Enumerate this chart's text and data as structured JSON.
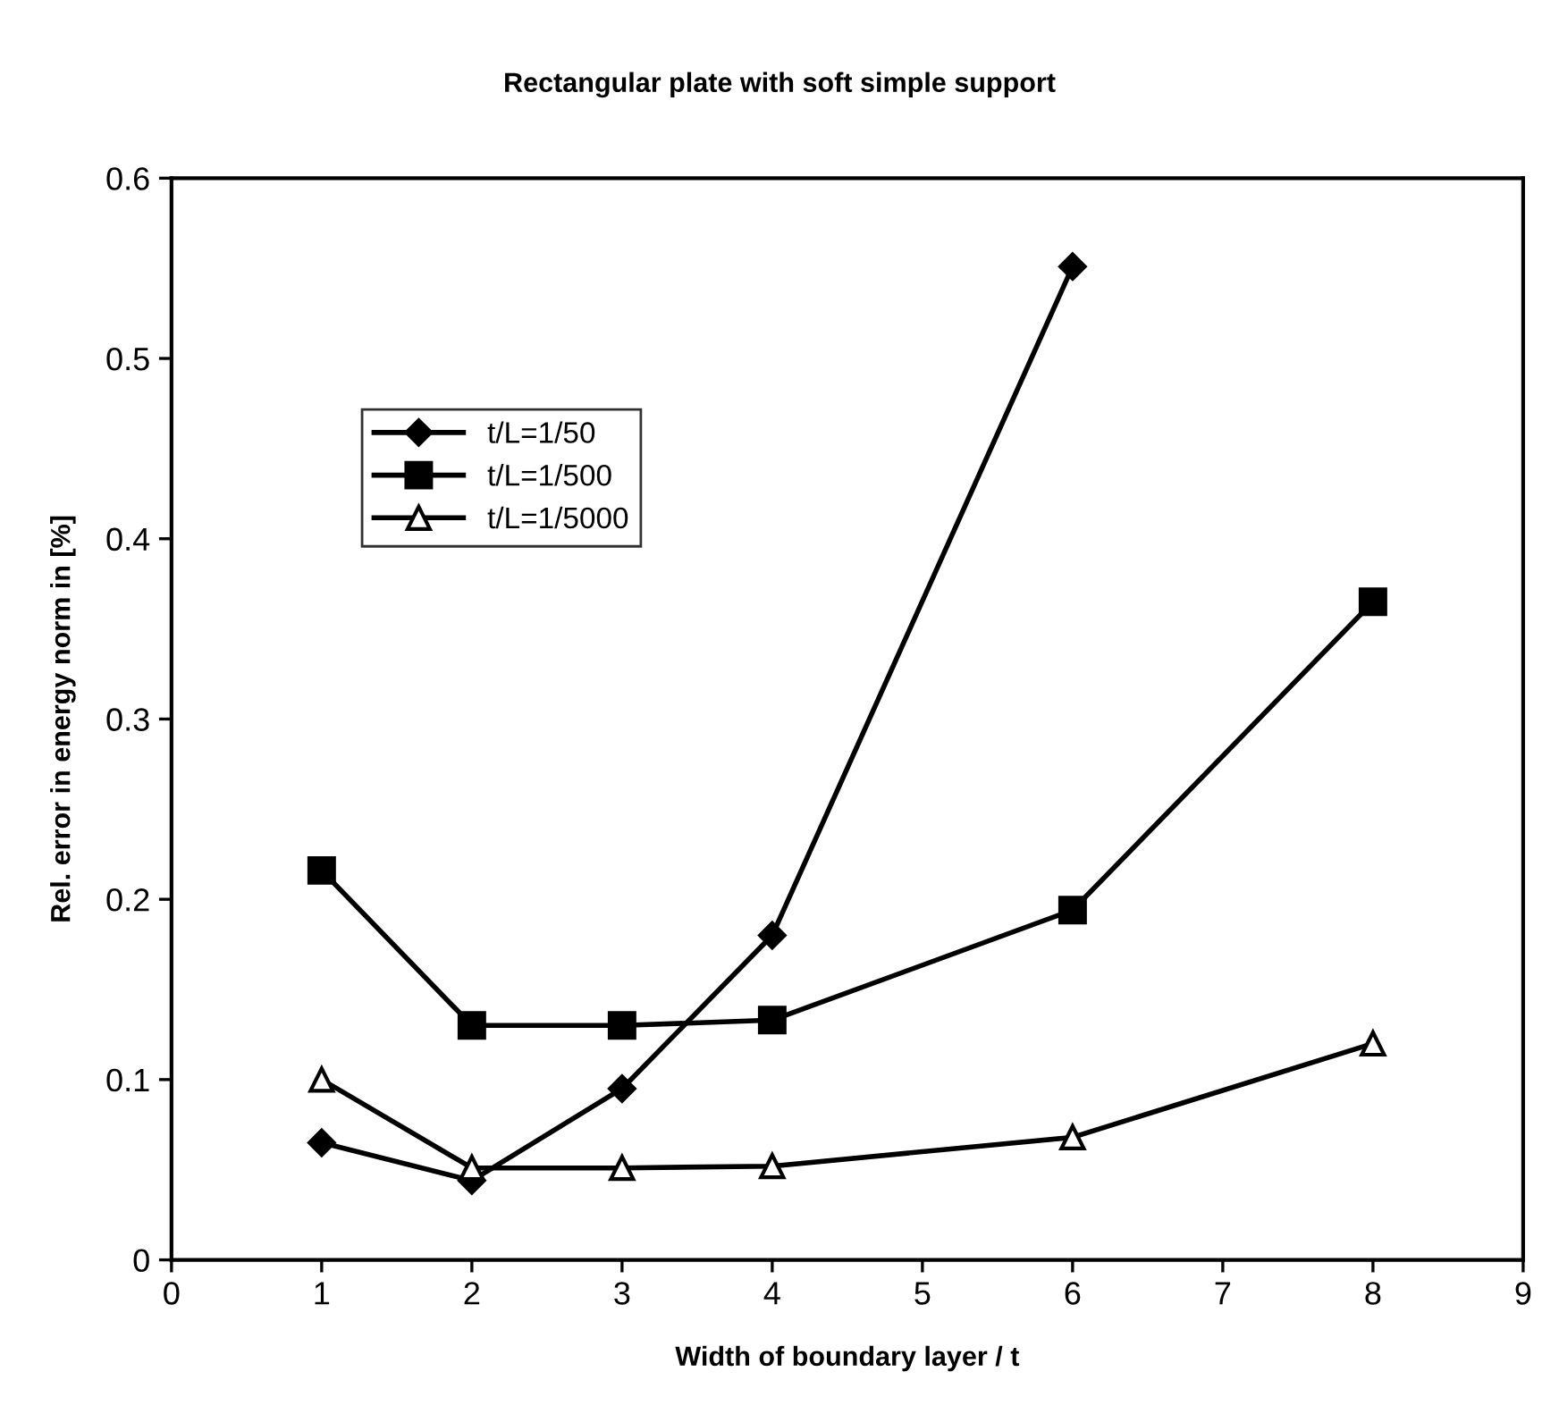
{
  "chart_data": {
    "type": "line",
    "title": "Rectangular plate with soft simple support",
    "xlabel": "Width of boundary layer / t",
    "ylabel": "Rel. error in energy norm in [%]",
    "x": [
      1,
      2,
      3,
      4,
      6,
      8
    ],
    "series": [
      {
        "name": "t/L=1/50",
        "color": "#000000",
        "marker": "diamond",
        "values": [
          0.065,
          0.044,
          0.095,
          0.18,
          0.551,
          null
        ]
      },
      {
        "name": "t/L=1/500",
        "color": "#000000",
        "marker": "square",
        "values": [
          0.216,
          0.13,
          0.13,
          0.133,
          0.194,
          0.365
        ]
      },
      {
        "name": "t/L=1/5000",
        "color": "#000000",
        "marker": "triangle",
        "values": [
          0.1,
          0.051,
          0.051,
          0.052,
          0.068,
          0.12
        ]
      }
    ],
    "xlim": [
      0,
      9
    ],
    "xticks": [
      0,
      1,
      2,
      3,
      4,
      5,
      6,
      7,
      8,
      9
    ],
    "ylim": [
      0,
      0.6
    ],
    "yticks": [
      {
        "value": 0,
        "label": "0"
      },
      0.1,
      0.2,
      0.3,
      0.4,
      0.5,
      0.6
    ],
    "grid": false,
    "legend": "top left",
    "line_style": "solid"
  }
}
